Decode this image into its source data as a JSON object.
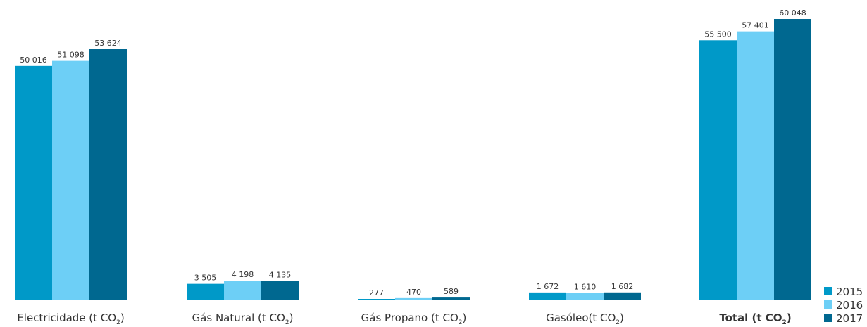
{
  "chart_data": {
    "type": "bar",
    "categories": [
      {
        "label": "Electricidade (t CO",
        "sub": "2",
        "end": ")",
        "bold": false
      },
      {
        "label": "Gás Natural (t CO",
        "sub": "2",
        "end": ")",
        "bold": false
      },
      {
        "label": "Gás Propano (t CO",
        "sub": "2",
        "end": ")",
        "bold": false
      },
      {
        "label": "Gasóleo(t CO",
        "sub": "2",
        "end": ")",
        "bold": false
      },
      {
        "label": "Total (t CO",
        "sub": "2",
        "end": ")",
        "bold": true
      }
    ],
    "series": [
      {
        "name": "2015",
        "color": "#0099c8",
        "values": [
          50016,
          3505,
          277,
          1672,
          55500
        ]
      },
      {
        "name": "2016",
        "color": "#6dcff6",
        "values": [
          51098,
          4198,
          470,
          1610,
          57401
        ]
      },
      {
        "name": "2017",
        "color": "#006890",
        "values": [
          53624,
          4135,
          589,
          1682,
          60048
        ]
      }
    ],
    "value_labels": [
      [
        "50 016",
        "3 505",
        "277",
        "1 672",
        "55 500"
      ],
      [
        "51 098",
        "4 198",
        "470",
        "1 610",
        "57 401"
      ],
      [
        "53 624",
        "4 135",
        "589",
        "1 682",
        "60 048"
      ]
    ],
    "ylim": [
      0,
      60048
    ],
    "grid": false,
    "legend_position": "bottom-right"
  }
}
